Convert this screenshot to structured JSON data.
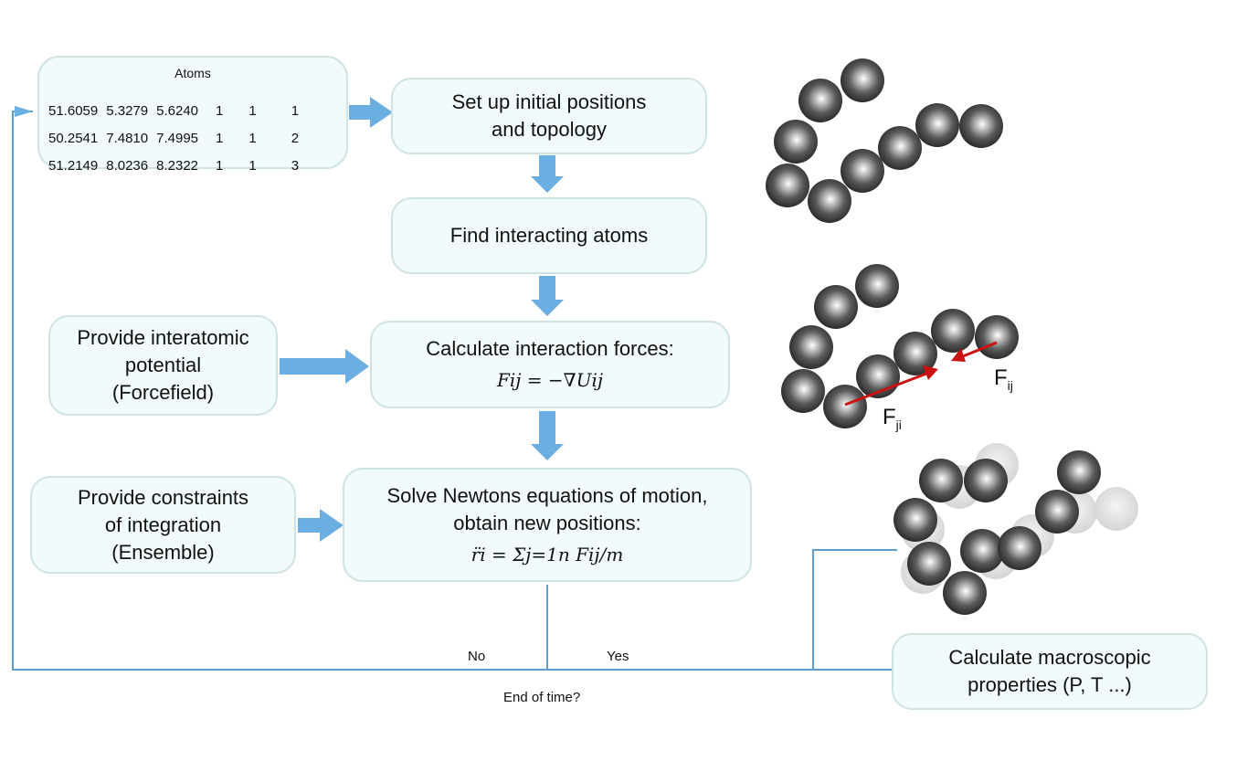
{
  "atoms_table": {
    "title": "Atoms",
    "rows": [
      [
        "51.6059",
        "5.3279",
        "5.6240",
        "1",
        "1",
        "1"
      ],
      [
        "50.2541",
        "7.4810",
        "7.4995",
        "1",
        "1",
        "2"
      ],
      [
        "51.2149",
        "8.0236",
        "8.2322",
        "1",
        "1",
        "3"
      ]
    ]
  },
  "steps": {
    "setup": [
      "Set up initial positions",
      "and topology"
    ],
    "find": "Find interacting atoms",
    "calc_forces": {
      "title": "Calculate interaction forces:",
      "equation": "Fij = −∇Uij"
    },
    "solve": {
      "lines": [
        "Solve Newtons equations of motion,",
        "obtain new  positions:"
      ],
      "equation": "r̈i = Σj=1n Fij/m"
    },
    "potential": [
      "Provide interatomic",
      "potential",
      "(Forcefield)"
    ],
    "constraints": [
      "Provide constraints",
      "of integration",
      "(Ensemble)"
    ],
    "macro": [
      "Calculate macroscopic",
      "properties (P, T ...)"
    ]
  },
  "decision": {
    "question": "End of time?",
    "no": "No",
    "yes": "Yes"
  },
  "force_labels": {
    "fij": "F",
    "fij_sub": "ij",
    "fji": "F",
    "fji_sub": "ji"
  },
  "colors": {
    "box_fill": "#f1fbfb",
    "box_border": "#cfe3e3",
    "arrow": "#6aaee2",
    "line": "#5d9fd3",
    "force_arrow": "#cc1111"
  }
}
